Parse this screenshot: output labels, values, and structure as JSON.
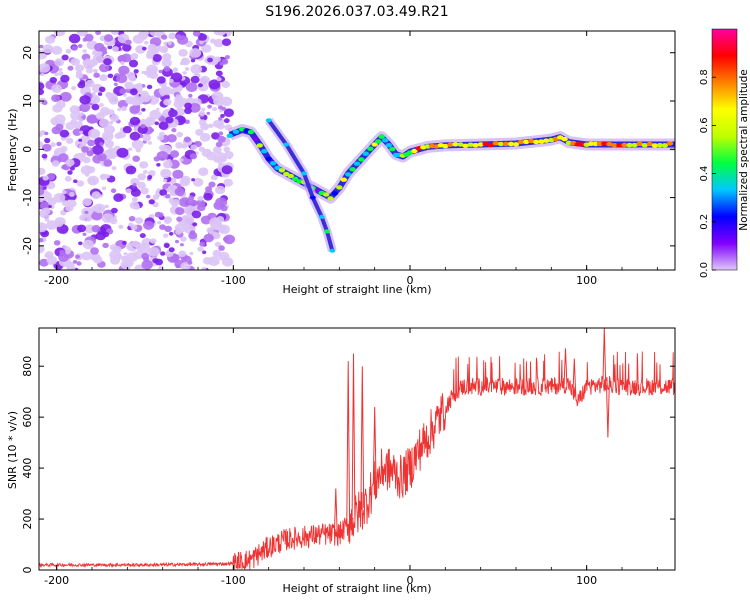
{
  "title": "S196.2026.037.03.49.R21",
  "chart_data": [
    {
      "type": "heatmap",
      "xlabel": "Height of straight line (km)",
      "ylabel": "Frequency (Hz)",
      "xlim": [
        -210,
        150
      ],
      "ylim": [
        -25,
        24.5
      ],
      "xticks": [
        -200,
        -100,
        0,
        100
      ],
      "yticks": [
        -20,
        -10,
        0,
        10,
        20
      ],
      "xtick_labels": [
        "-200",
        "-100",
        "0",
        "100"
      ],
      "ytick_labels": [
        "-20",
        "-10",
        "0",
        "10",
        "20"
      ],
      "noise_region_x": [
        -210,
        -102
      ],
      "ridge_track": [
        {
          "x": -102,
          "y": 3
        },
        {
          "x": -95,
          "y": 4
        },
        {
          "x": -90,
          "y": 3.5
        },
        {
          "x": -85,
          "y": 1
        },
        {
          "x": -80,
          "y": -2
        },
        {
          "x": -75,
          "y": -4
        },
        {
          "x": -70,
          "y": -5
        },
        {
          "x": -65,
          "y": -6
        },
        {
          "x": -60,
          "y": -7
        },
        {
          "x": -55,
          "y": -8
        },
        {
          "x": -50,
          "y": -9
        },
        {
          "x": -45,
          "y": -10
        },
        {
          "x": -40,
          "y": -8
        },
        {
          "x": -35,
          "y": -5
        },
        {
          "x": -30,
          "y": -3
        },
        {
          "x": -25,
          "y": -1
        },
        {
          "x": -20,
          "y": 1
        },
        {
          "x": -16,
          "y": 2.5
        },
        {
          "x": -12,
          "y": 1
        },
        {
          "x": -8,
          "y": -1
        },
        {
          "x": -4,
          "y": -1.5
        },
        {
          "x": 0,
          "y": -0.5
        },
        {
          "x": 10,
          "y": 0.5
        },
        {
          "x": 20,
          "y": 0.8
        },
        {
          "x": 40,
          "y": 1
        },
        {
          "x": 60,
          "y": 1.2
        },
        {
          "x": 80,
          "y": 2
        },
        {
          "x": 85,
          "y": 2.5
        },
        {
          "x": 90,
          "y": 1.5
        },
        {
          "x": 100,
          "y": 1
        },
        {
          "x": 110,
          "y": 1
        },
        {
          "x": 130,
          "y": 1
        },
        {
          "x": 150,
          "y": 1
        }
      ],
      "secondary_track": [
        {
          "x": -80,
          "y": 6
        },
        {
          "x": -70,
          "y": 1
        },
        {
          "x": -60,
          "y": -5
        },
        {
          "x": -55,
          "y": -10
        },
        {
          "x": -50,
          "y": -14
        },
        {
          "x": -47,
          "y": -17
        },
        {
          "x": -44,
          "y": -21
        }
      ],
      "colorbar": {
        "label": "Normalized spectral amplitude",
        "range": [
          0,
          1
        ],
        "ticks": [
          0.0,
          0.2,
          0.4,
          0.6,
          0.8
        ],
        "tick_labels": [
          "0.0",
          "0.2",
          "0.4",
          "0.6",
          "0.8"
        ],
        "stops": [
          "#e0c8f8",
          "#8000ff",
          "#0000ff",
          "#00c8ff",
          "#00ff40",
          "#c0ff00",
          "#ffff00",
          "#ff8000",
          "#ff0000",
          "#ff00a0"
        ]
      }
    },
    {
      "type": "line",
      "xlabel": "Height of straight line (km)",
      "ylabel": "SNR (10 * v/v)",
      "xlim": [
        -210,
        150
      ],
      "ylim": [
        0,
        950
      ],
      "xticks": [
        -200,
        -100,
        0,
        100
      ],
      "yticks": [
        0,
        200,
        400,
        600,
        800
      ],
      "xtick_labels": [
        "-200",
        "-100",
        "0",
        "100"
      ],
      "ytick_labels": [
        "0",
        "200",
        "400",
        "600",
        "800"
      ],
      "color": "#ee3333",
      "series": [
        {
          "name": "SNR",
          "x": [
            -210,
            -180,
            -150,
            -120,
            -100,
            -90,
            -80,
            -70,
            -60,
            -50,
            -40,
            -32,
            -25,
            -20,
            -15,
            -10,
            -5,
            0,
            5,
            10,
            15,
            20,
            25,
            30,
            40,
            60,
            80,
            90,
            95,
            100,
            110,
            120,
            130,
            150
          ],
          "y": [
            20,
            20,
            20,
            22,
            25,
            40,
            90,
            120,
            130,
            140,
            140,
            200,
            260,
            340,
            400,
            390,
            360,
            400,
            470,
            520,
            580,
            640,
            690,
            720,
            720,
            720,
            720,
            730,
            660,
            720,
            730,
            720,
            720,
            720
          ]
        }
      ],
      "spikes": [
        {
          "x": -42,
          "y": 320
        },
        {
          "x": -35,
          "y": 820
        },
        {
          "x": -32,
          "y": 850
        },
        {
          "x": -27,
          "y": 800
        },
        {
          "x": -20,
          "y": 640
        },
        {
          "x": 88,
          "y": 870
        },
        {
          "x": 93,
          "y": 830
        },
        {
          "x": 110,
          "y": 950
        },
        {
          "x": 112,
          "y": 520
        }
      ]
    }
  ]
}
